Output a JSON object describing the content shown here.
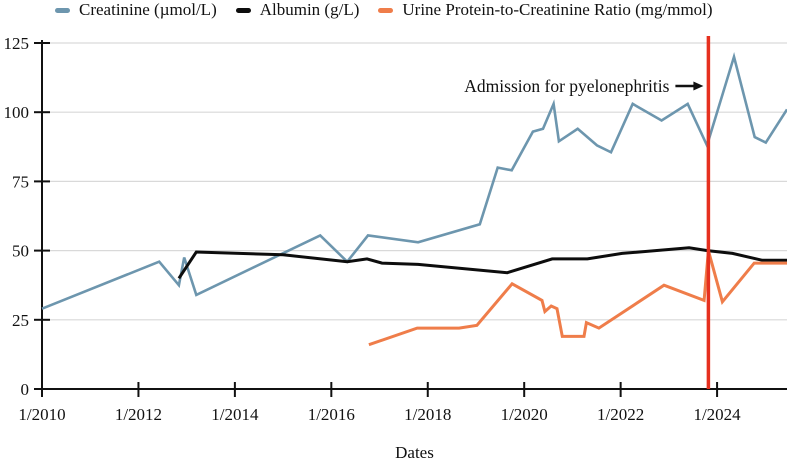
{
  "figure": {
    "xlabel": "Dates",
    "background": "#ffffff",
    "gridline_color": "#d9d9d9",
    "axis_color": "#111111"
  },
  "legend": {
    "items": [
      {
        "id": "creatinine",
        "label": "Creatinine (µmol/L)",
        "color": "#6d96ae"
      },
      {
        "id": "albumin",
        "label": "Albumin (g/L)",
        "color": "#0d0d0d"
      },
      {
        "id": "upcr",
        "label": "Urine Protein-to-Creatinine Ratio (mg/mmol)",
        "color": "#ef7d4a"
      }
    ]
  },
  "annotation": {
    "text": "Admission for pyelonephritis",
    "arrow": "right-arrow",
    "color": "#111111"
  },
  "chart_data": {
    "type": "line",
    "title": "",
    "xlabel": "Dates",
    "ylabel": "",
    "xlim": [
      2010,
      2025.45
    ],
    "ylim": [
      0,
      125
    ],
    "yticks": [
      0,
      25,
      50,
      75,
      100,
      125
    ],
    "xticks": [
      {
        "x": 2010,
        "label": "1/2010"
      },
      {
        "x": 2012,
        "label": "1/2012"
      },
      {
        "x": 2014,
        "label": "1/2014"
      },
      {
        "x": 2016,
        "label": "1/2016"
      },
      {
        "x": 2018,
        "label": "1/2018"
      },
      {
        "x": 2020,
        "label": "1/2020"
      },
      {
        "x": 2022,
        "label": "1/2022"
      },
      {
        "x": 2024,
        "label": "1/2024"
      }
    ],
    "grid": "horizontal",
    "legend_position": "top-left",
    "event_line": {
      "x": 2023.82,
      "color": "#e6301f",
      "label": "Admission for pyelonephritis"
    },
    "series": [
      {
        "name": "Creatinine (µmol/L)",
        "color": "#6d96ae",
        "stroke_width": 2.6,
        "points": [
          [
            2010.0,
            29
          ],
          [
            2012.43,
            46
          ],
          [
            2012.84,
            37.5
          ],
          [
            2012.95,
            47.5
          ],
          [
            2013.2,
            34
          ],
          [
            2015.77,
            55.5
          ],
          [
            2016.33,
            46
          ],
          [
            2016.76,
            55.5
          ],
          [
            2017.8,
            53
          ],
          [
            2019.08,
            59.5
          ],
          [
            2019.45,
            80
          ],
          [
            2019.74,
            79
          ],
          [
            2020.18,
            93
          ],
          [
            2020.39,
            94
          ],
          [
            2020.61,
            103
          ],
          [
            2020.72,
            89.5
          ],
          [
            2021.11,
            94
          ],
          [
            2021.51,
            88
          ],
          [
            2021.8,
            85.5
          ],
          [
            2022.25,
            103
          ],
          [
            2022.85,
            97
          ],
          [
            2023.39,
            103
          ],
          [
            2023.79,
            88
          ],
          [
            2024.35,
            120
          ],
          [
            2024.78,
            91
          ],
          [
            2025.01,
            89
          ],
          [
            2025.45,
            101
          ]
        ]
      },
      {
        "name": "Albumin (g/L)",
        "color": "#0d0d0d",
        "stroke_width": 3,
        "points": [
          [
            2012.84,
            40
          ],
          [
            2013.2,
            49.5
          ],
          [
            2015.0,
            48.5
          ],
          [
            2016.33,
            46
          ],
          [
            2016.74,
            47
          ],
          [
            2017.05,
            45.5
          ],
          [
            2017.8,
            45
          ],
          [
            2019.65,
            42
          ],
          [
            2020.58,
            47
          ],
          [
            2021.31,
            47
          ],
          [
            2022.03,
            49
          ],
          [
            2023.42,
            51
          ],
          [
            2023.8,
            50
          ],
          [
            2024.32,
            49
          ],
          [
            2024.94,
            46.5
          ],
          [
            2025.45,
            46.5
          ]
        ]
      },
      {
        "name": "Urine Protein-to-Creatinine Ratio (mg/mmol)",
        "color": "#ef7d4a",
        "stroke_width": 3,
        "points": [
          [
            2016.78,
            16
          ],
          [
            2017.78,
            22
          ],
          [
            2018.65,
            22
          ],
          [
            2019.02,
            23
          ],
          [
            2019.75,
            38
          ],
          [
            2020.37,
            32
          ],
          [
            2020.43,
            28
          ],
          [
            2020.56,
            30
          ],
          [
            2020.68,
            29
          ],
          [
            2020.79,
            19
          ],
          [
            2021.24,
            19
          ],
          [
            2021.29,
            24
          ],
          [
            2021.55,
            22
          ],
          [
            2022.9,
            37.5
          ],
          [
            2023.73,
            32
          ],
          [
            2023.82,
            50
          ],
          [
            2024.11,
            31.5
          ],
          [
            2024.77,
            45.5
          ],
          [
            2025.45,
            45.5
          ]
        ]
      }
    ]
  }
}
